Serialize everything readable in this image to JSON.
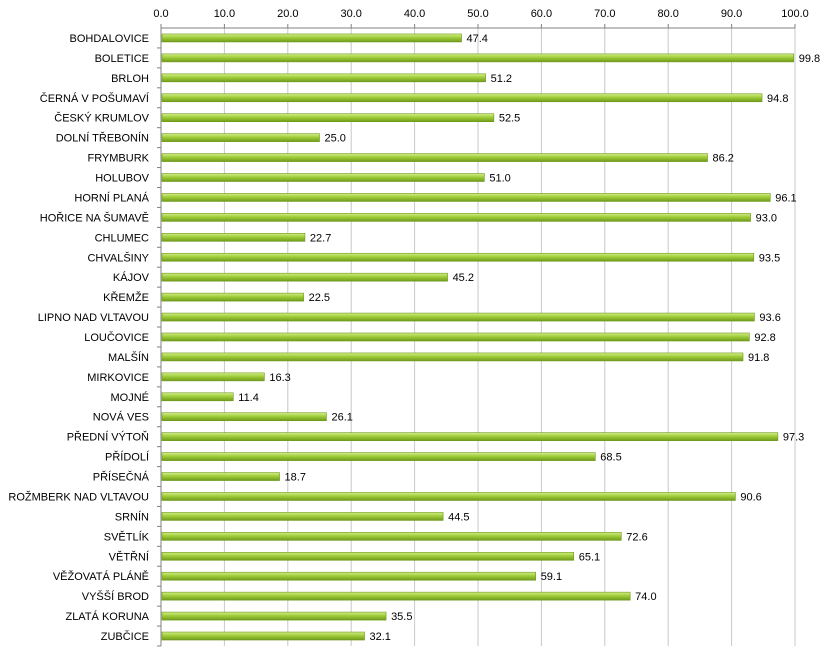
{
  "chart_data": {
    "type": "bar",
    "orientation": "horizontal",
    "title": "",
    "xlabel": "",
    "ylabel": "",
    "xlim": [
      0,
      100
    ],
    "x_axis_position": "top",
    "tick_values": [
      0,
      10,
      20,
      30,
      40,
      50,
      60,
      70,
      80,
      90,
      100
    ],
    "tick_labels": [
      "0.0",
      "10.0",
      "20.0",
      "30.0",
      "40.0",
      "50.0",
      "60.0",
      "70.0",
      "80.0",
      "90.0",
      "100.0"
    ],
    "grid": true,
    "categories": [
      "BOHDALOVICE",
      "BOLETICE",
      "BRLOH",
      "ČERNÁ V POŠUMAVÍ",
      "ČESKÝ KRUMLOV",
      "DOLNÍ TŘEBONÍN",
      "FRYMBURK",
      "HOLUBOV",
      "HORNÍ PLANÁ",
      "HOŘICE NA ŠUMAVĚ",
      "CHLUMEC",
      "CHVALŠINY",
      "KÁJOV",
      "KŘEMŽE",
      "LIPNO NAD VLTAVOU",
      "LOUČOVICE",
      "MALŠÍN",
      "MIRKOVICE",
      "MOJNÉ",
      "NOVÁ VES",
      "PŘEDNÍ VÝTOŇ",
      "PŘÍDOLÍ",
      "PŘÍSEČNÁ",
      "ROŽMBERK NAD VLTAVOU",
      "SRNÍN",
      "SVĚTLÍK",
      "VĚTŘNÍ",
      "VĚŽOVATÁ PLÁNĚ",
      "VYŠŠÍ BROD",
      "ZLATÁ KORUNA",
      "ZUBČICE"
    ],
    "values": [
      47.4,
      99.8,
      51.2,
      94.8,
      52.5,
      25.0,
      86.2,
      51.0,
      96.1,
      93.0,
      22.7,
      93.5,
      45.2,
      22.5,
      93.6,
      92.8,
      91.8,
      16.3,
      11.4,
      26.1,
      97.3,
      68.5,
      18.7,
      90.6,
      44.5,
      72.6,
      65.1,
      59.1,
      74.0,
      35.5,
      32.1
    ],
    "value_labels": [
      "47.4",
      "99.8",
      "51.2",
      "94.8",
      "52.5",
      "25.0",
      "86.2",
      "51.0",
      "96.1",
      "93.0",
      "22.7",
      "93.5",
      "45.2",
      "22.5",
      "93.6",
      "92.8",
      "91.8",
      "16.3",
      "11.4",
      "26.1",
      "97.3",
      "68.5",
      "18.7",
      "90.6",
      "44.5",
      "72.6",
      "65.1",
      "59.1",
      "74.0",
      "35.5",
      "32.1"
    ],
    "colors": {
      "bar_light": "#d4ee8a",
      "bar_mid": "#9fcd3a",
      "bar_dark": "#6f9a1c",
      "grid": "#c8c8c8",
      "axis": "#808080"
    }
  }
}
